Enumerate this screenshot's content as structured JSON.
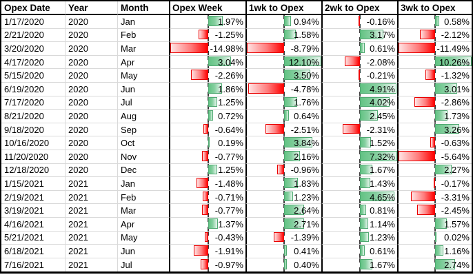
{
  "chart_data": {
    "type": "table",
    "columns": [
      "Opex Date",
      "Year",
      "Month",
      "Opex Week",
      "1wk to Opex",
      "2wk to Opex",
      "3wk to Opex"
    ],
    "rows": [
      {
        "date": "1/17/2020",
        "year": "2020",
        "month": "Jan",
        "values": [
          1.97,
          0.94,
          -0.16,
          0.58
        ]
      },
      {
        "date": "2/21/2020",
        "year": "2020",
        "month": "Feb",
        "values": [
          -1.25,
          1.58,
          3.17,
          -2.12
        ]
      },
      {
        "date": "3/20/2020",
        "year": "2020",
        "month": "Mar",
        "values": [
          -14.98,
          -8.79,
          0.61,
          -11.49
        ]
      },
      {
        "date": "4/17/2020",
        "year": "2020",
        "month": "Apr",
        "values": [
          3.04,
          12.1,
          -2.08,
          10.26
        ]
      },
      {
        "date": "5/15/2020",
        "year": "2020",
        "month": "May",
        "values": [
          -2.26,
          3.5,
          -0.21,
          -1.32
        ]
      },
      {
        "date": "6/19/2020",
        "year": "2020",
        "month": "Jun",
        "values": [
          1.86,
          -4.78,
          4.91,
          3.01
        ]
      },
      {
        "date": "7/17/2020",
        "year": "2020",
        "month": "Jul",
        "values": [
          1.25,
          1.76,
          4.02,
          -2.86
        ]
      },
      {
        "date": "8/21/2020",
        "year": "2020",
        "month": "Aug",
        "values": [
          0.72,
          0.64,
          2.45,
          1.73
        ]
      },
      {
        "date": "9/18/2020",
        "year": "2020",
        "month": "Sep",
        "values": [
          -0.64,
          -2.51,
          -2.31,
          3.26
        ]
      },
      {
        "date": "10/16/2020",
        "year": "2020",
        "month": "Oct",
        "values": [
          0.19,
          3.84,
          1.52,
          -0.63
        ]
      },
      {
        "date": "11/20/2020",
        "year": "2020",
        "month": "Nov",
        "values": [
          -0.77,
          2.16,
          7.32,
          -5.64
        ]
      },
      {
        "date": "12/18/2020",
        "year": "2020",
        "month": "Dec",
        "values": [
          1.25,
          -0.96,
          1.67,
          2.27
        ]
      },
      {
        "date": "1/15/2021",
        "year": "2021",
        "month": "Jan",
        "values": [
          -1.48,
          1.83,
          1.43,
          -0.17
        ]
      },
      {
        "date": "2/19/2021",
        "year": "2021",
        "month": "Feb",
        "values": [
          -0.71,
          1.23,
          4.65,
          -3.31
        ]
      },
      {
        "date": "3/19/2021",
        "year": "2021",
        "month": "Mar",
        "values": [
          -0.77,
          2.64,
          0.81,
          -2.45
        ]
      },
      {
        "date": "4/16/2021",
        "year": "2021",
        "month": "Apr",
        "values": [
          1.37,
          2.71,
          1.14,
          1.57
        ]
      },
      {
        "date": "5/21/2021",
        "year": "2021",
        "month": "May",
        "values": [
          -0.43,
          -1.39,
          1.23,
          0.02
        ]
      },
      {
        "date": "6/18/2021",
        "year": "2021",
        "month": "Jun",
        "values": [
          -1.91,
          0.41,
          0.61,
          1.16
        ]
      },
      {
        "date": "7/16/2021",
        "year": "2021",
        "month": "Jul",
        "values": [
          -0.97,
          0.4,
          1.67,
          2.74
        ]
      }
    ],
    "value_format": "percent_2dp",
    "databar": {
      "scale_min": -5,
      "scale_max": 5,
      "axis_position": "cell-midpoint",
      "axis_style": "dashed",
      "positive_fill": "#63C384",
      "positive_border": "#4FA971",
      "negative_fill": "#FF0000",
      "negative_border": "#EA0000"
    },
    "layout": {
      "gridline_color": "#D9D9D9",
      "table_border_color": "#000000",
      "text_color": "#000000",
      "background": "#FFFFFF",
      "header_bold": true,
      "value_align": "right",
      "label_align": "left"
    }
  }
}
